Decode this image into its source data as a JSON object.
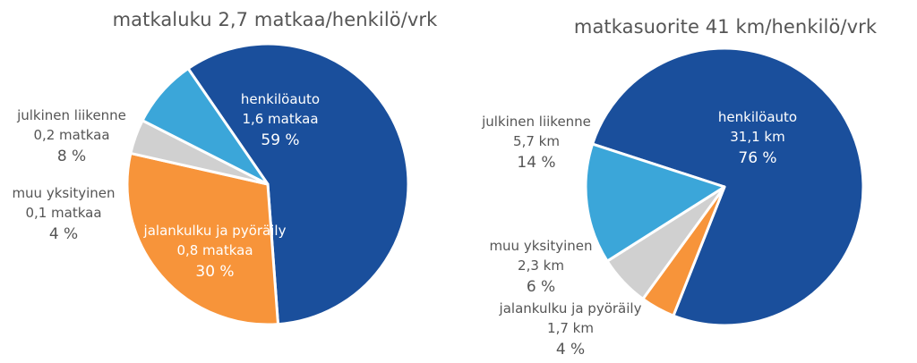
{
  "charts": {
    "left": {
      "title": "matkaluku 2,7 matkaa/henkilö/vrk"
    },
    "right": {
      "title": "matkasuorite 41 km/henkilö/vrk"
    }
  },
  "chart_data": [
    {
      "type": "pie",
      "title": "matkaluku 2,7 matkaa/henkilö/vrk",
      "slices": [
        {
          "label": "henkilöauto",
          "value_text": "1,6 matkaa",
          "value": 1.6,
          "percent": 59,
          "percent_text": "59 %",
          "color": "#1a4f9c"
        },
        {
          "label": "jalankulku ja pyöräily",
          "value_text": "0,8 matkaa",
          "value": 0.8,
          "percent": 30,
          "percent_text": "30 %",
          "color": "#f7943a"
        },
        {
          "label": "muu yksityinen",
          "value_text": "0,1 matkaa",
          "value": 0.1,
          "percent": 4,
          "percent_text": "4 %",
          "color": "#d0d0d0"
        },
        {
          "label": "julkinen liikenne",
          "value_text": "0,2 matkaa",
          "value": 0.2,
          "percent": 8,
          "percent_text": "8 %",
          "color": "#3ba6d9"
        }
      ]
    },
    {
      "type": "pie",
      "title": "matkasuorite 41 km/henkilö/vrk",
      "slices": [
        {
          "label": "henkilöauto",
          "value_text": "31,1 km",
          "value": 31.1,
          "percent": 76,
          "percent_text": "76 %",
          "color": "#1a4f9c"
        },
        {
          "label": "jalankulku ja pyöräily",
          "value_text": "1,7 km",
          "value": 1.7,
          "percent": 4,
          "percent_text": "4 %",
          "color": "#f7943a"
        },
        {
          "label": "muu yksityinen",
          "value_text": "2,3 km",
          "value": 2.3,
          "percent": 6,
          "percent_text": "6 %",
          "color": "#d0d0d0"
        },
        {
          "label": "julkinen liikenne",
          "value_text": "5,7 km",
          "value": 5.7,
          "percent": 14,
          "percent_text": "14 %",
          "color": "#3ba6d9"
        }
      ]
    }
  ]
}
